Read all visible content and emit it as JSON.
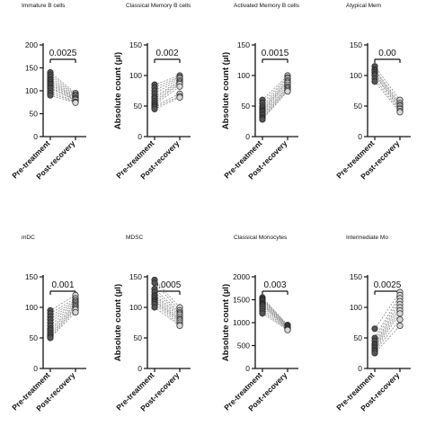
{
  "chart_data": [
    {
      "type": "scatter",
      "title": "Immature B cells",
      "ylabel": "",
      "ylim": [
        0,
        200
      ],
      "yticks": [
        0,
        50,
        100,
        150,
        200
      ],
      "categories": [
        "Pre-treatment",
        "Post-recovery"
      ],
      "pvalue": "0.0025",
      "pairs": [
        [
          140,
          95
        ],
        [
          135,
          92
        ],
        [
          130,
          90
        ],
        [
          125,
          88
        ],
        [
          122,
          85
        ],
        [
          118,
          84
        ],
        [
          115,
          82
        ],
        [
          112,
          80
        ],
        [
          108,
          78
        ],
        [
          105,
          80
        ],
        [
          100,
          76
        ],
        [
          95,
          75
        ],
        [
          90,
          74
        ]
      ]
    },
    {
      "type": "scatter",
      "title": "Classical Memory B cells",
      "ylabel": "Absolute count (µl)",
      "ylim": [
        0,
        150
      ],
      "yticks": [
        0,
        50,
        100,
        150
      ],
      "categories": [
        "Pre-treatment",
        "Post-recovery"
      ],
      "pvalue": "0.002",
      "pairs": [
        [
          85,
          100
        ],
        [
          80,
          98
        ],
        [
          75,
          97
        ],
        [
          70,
          95
        ],
        [
          65,
          92
        ],
        [
          62,
          90
        ],
        [
          58,
          88
        ],
        [
          55,
          86
        ],
        [
          52,
          82
        ],
        [
          50,
          70
        ],
        [
          48,
          66
        ],
        [
          45,
          64
        ]
      ]
    },
    {
      "type": "scatter",
      "title": "Activated Memory B cells",
      "ylabel": "Absolute count (µl)",
      "ylim": [
        0,
        150
      ],
      "yticks": [
        0,
        50,
        100,
        150
      ],
      "categories": [
        "Pre-treatment",
        "Post-recovery"
      ],
      "pvalue": "0.0015",
      "pairs": [
        [
          60,
          100
        ],
        [
          55,
          97
        ],
        [
          50,
          95
        ],
        [
          47,
          92
        ],
        [
          44,
          90
        ],
        [
          42,
          88
        ],
        [
          40,
          85
        ],
        [
          37,
          82
        ],
        [
          35,
          80
        ],
        [
          32,
          78
        ],
        [
          30,
          76
        ],
        [
          28,
          74
        ]
      ]
    },
    {
      "type": "scatter",
      "title": "Atypical Mem",
      "ylabel": "",
      "ylim": [
        0,
        150
      ],
      "yticks": [
        0,
        50,
        100,
        150
      ],
      "categories": [
        "Pre-treatment",
        "Post-recovery"
      ],
      "pvalue": "0.00",
      "pairs": [
        [
          115,
          60
        ],
        [
          110,
          55
        ],
        [
          108,
          52
        ],
        [
          105,
          50
        ],
        [
          102,
          47
        ],
        [
          100,
          45
        ],
        [
          95,
          42
        ],
        [
          90,
          40
        ]
      ]
    },
    {
      "type": "scatter",
      "title": "mDC",
      "ylabel": "",
      "ylim": [
        0,
        150
      ],
      "yticks": [
        0,
        50,
        100,
        150
      ],
      "categories": [
        "Pre-treatment",
        "Post-recovery"
      ],
      "pvalue": "0.001",
      "pairs": [
        [
          95,
          120
        ],
        [
          90,
          115
        ],
        [
          85,
          112
        ],
        [
          80,
          110
        ],
        [
          75,
          108
        ],
        [
          70,
          106
        ],
        [
          65,
          104
        ],
        [
          62,
          102
        ],
        [
          58,
          100
        ],
        [
          55,
          98
        ],
        [
          52,
          96
        ],
        [
          50,
          92
        ]
      ]
    },
    {
      "type": "scatter",
      "title": "MDSC",
      "ylabel": "Absolute count (µl)",
      "ylim": [
        0,
        150
      ],
      "yticks": [
        0,
        50,
        100,
        150
      ],
      "categories": [
        "Pre-treatment",
        "Post-recovery"
      ],
      "pvalue": "0.0005",
      "pairs": [
        [
          145,
          100
        ],
        [
          140,
          95
        ],
        [
          130,
          92
        ],
        [
          125,
          90
        ],
        [
          120,
          88
        ],
        [
          118,
          85
        ],
        [
          115,
          82
        ],
        [
          112,
          80
        ],
        [
          110,
          78
        ],
        [
          108,
          75
        ],
        [
          105,
          72
        ],
        [
          100,
          70
        ]
      ]
    },
    {
      "type": "scatter",
      "title": "Classical Monocytes",
      "ylabel": "Absolute count (µl)",
      "ylim": [
        0,
        2000
      ],
      "yticks": [
        0,
        500,
        1000,
        1500,
        2000
      ],
      "categories": [
        "Pre-treatment",
        "Post-recovery"
      ],
      "pvalue": "0.003",
      "pairs": [
        [
          1550,
          950
        ],
        [
          1520,
          940
        ],
        [
          1500,
          930
        ],
        [
          1480,
          920
        ],
        [
          1450,
          910
        ],
        [
          1420,
          900
        ],
        [
          1400,
          890
        ],
        [
          1380,
          880
        ],
        [
          1350,
          870
        ],
        [
          1300,
          860
        ],
        [
          1250,
          850
        ],
        [
          1200,
          840
        ]
      ]
    },
    {
      "type": "scatter",
      "title": "Intermediate Mo",
      "ylabel": "",
      "ylim": [
        0,
        150
      ],
      "yticks": [
        0,
        50,
        100,
        150
      ],
      "categories": [
        "Pre-treatment",
        "Post-recovery"
      ],
      "pvalue": "0.0025",
      "pairs": [
        [
          65,
          125
        ],
        [
          50,
          120
        ],
        [
          45,
          115
        ],
        [
          40,
          110
        ],
        [
          38,
          105
        ],
        [
          35,
          100
        ],
        [
          33,
          95
        ],
        [
          30,
          90
        ],
        [
          28,
          80
        ],
        [
          25,
          70
        ]
      ]
    }
  ],
  "colors": {
    "pre": "#555555",
    "post": "#d8d8d8",
    "line": "#888888",
    "axis": "#111111"
  }
}
